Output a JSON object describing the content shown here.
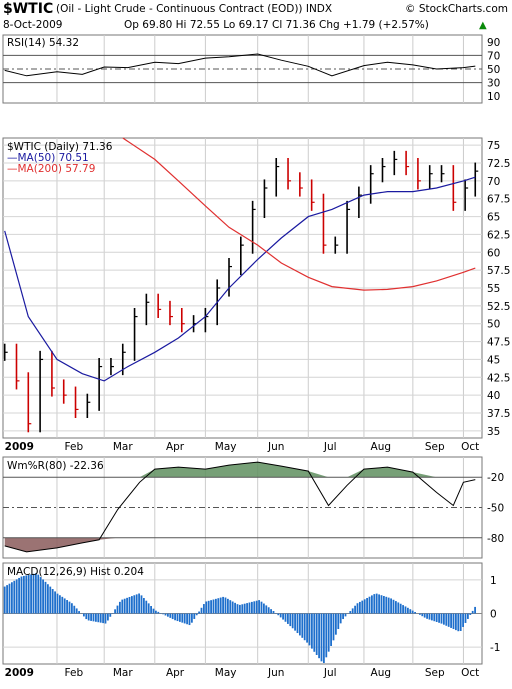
{
  "header": {
    "symbol": "$WTIC",
    "description": "(Oil - Light Crude - Continuous Contract (EOD)) INDX",
    "source": "© StockCharts.com",
    "date": "8-Oct-2009",
    "quote": "Op 69.80  Hi 72.55  Lo 69.17  Cl 71.36  Chg +1.79 (+2.57%)",
    "chg_arrow": "▲"
  },
  "colors": {
    "price_up": "#000000",
    "price_down": "#cc0000",
    "ma50": "#1a1aa0",
    "ma200": "#e03030",
    "wm_green": "#5f8f5f",
    "wm_brown": "#8a5a5a",
    "macd_hist": "#1e6fcc"
  },
  "chart_data": [
    {
      "type": "line",
      "name": "rsi",
      "title": "RSI(14) 54.32",
      "ylim": [
        0,
        100
      ],
      "yticks": [
        10,
        30,
        50,
        70,
        90
      ],
      "reference_lines": [
        30,
        50,
        70
      ],
      "x": [
        "2009-01-02",
        "2009-01-15",
        "2009-02-02",
        "2009-02-17",
        "2009-03-02",
        "2009-03-16",
        "2009-04-01",
        "2009-04-15",
        "2009-05-01",
        "2009-05-15",
        "2009-06-01",
        "2009-06-15",
        "2009-07-01",
        "2009-07-15",
        "2009-08-03",
        "2009-08-17",
        "2009-09-01",
        "2009-09-15",
        "2009-10-01",
        "2009-10-08"
      ],
      "values": [
        48,
        40,
        46,
        42,
        53,
        52,
        60,
        58,
        66,
        68,
        72,
        63,
        54,
        40,
        55,
        60,
        56,
        50,
        52,
        54.32
      ]
    },
    {
      "type": "line",
      "name": "price",
      "title": "$WTIC (Daily) 71.36",
      "ylim": [
        34,
        76
      ],
      "yticks": [
        35,
        37.5,
        40,
        42.5,
        45,
        47.5,
        50,
        52.5,
        55,
        57.5,
        60,
        62.5,
        65,
        67.5,
        70,
        72.5,
        75
      ],
      "series": [
        {
          "name": "$WTIC (Daily) 71.36",
          "x": [
            "2009-01-02",
            "2009-01-09",
            "2009-01-16",
            "2009-01-23",
            "2009-01-30",
            "2009-02-06",
            "2009-02-13",
            "2009-02-20",
            "2009-02-27",
            "2009-03-06",
            "2009-03-13",
            "2009-03-20",
            "2009-03-27",
            "2009-04-03",
            "2009-04-10",
            "2009-04-17",
            "2009-04-24",
            "2009-05-01",
            "2009-05-08",
            "2009-05-15",
            "2009-05-22",
            "2009-05-29",
            "2009-06-05",
            "2009-06-12",
            "2009-06-19",
            "2009-06-26",
            "2009-07-03",
            "2009-07-10",
            "2009-07-17",
            "2009-07-24",
            "2009-07-31",
            "2009-08-07",
            "2009-08-14",
            "2009-08-21",
            "2009-08-28",
            "2009-09-04",
            "2009-09-11",
            "2009-09-18",
            "2009-09-25",
            "2009-10-02",
            "2009-10-08"
          ],
          "values": [
            46,
            42,
            36,
            45,
            41,
            40,
            38,
            39,
            44,
            44,
            46,
            51,
            53,
            52,
            51,
            50,
            50,
            51,
            55,
            58,
            61,
            66,
            69,
            72,
            70,
            69,
            67,
            61,
            61,
            66,
            68,
            71,
            72,
            73,
            72,
            70,
            71,
            71,
            67,
            69,
            71.36
          ]
        },
        {
          "name": "MA(50) 70.51",
          "x": [
            "2009-01-02",
            "2009-01-16",
            "2009-02-02",
            "2009-02-17",
            "2009-03-02",
            "2009-03-16",
            "2009-04-01",
            "2009-04-15",
            "2009-05-01",
            "2009-05-15",
            "2009-06-01",
            "2009-06-15",
            "2009-07-01",
            "2009-07-15",
            "2009-08-03",
            "2009-08-17",
            "2009-09-01",
            "2009-09-15",
            "2009-10-01",
            "2009-10-08"
          ],
          "values": [
            63,
            51,
            45,
            43,
            42,
            44,
            46,
            48,
            51,
            55,
            59,
            62,
            65,
            66,
            68,
            68.5,
            68.5,
            69,
            70,
            70.51
          ]
        },
        {
          "name": "MA(200) 57.79",
          "x": [
            "2009-03-13",
            "2009-04-01",
            "2009-04-15",
            "2009-05-01",
            "2009-05-15",
            "2009-06-01",
            "2009-06-15",
            "2009-07-01",
            "2009-07-15",
            "2009-08-03",
            "2009-08-17",
            "2009-09-01",
            "2009-09-15",
            "2009-10-01",
            "2009-10-08"
          ],
          "values": [
            76,
            73,
            70,
            66.5,
            63.5,
            61,
            58.5,
            56.5,
            55.2,
            54.7,
            54.8,
            55.2,
            56,
            57.2,
            57.79
          ]
        }
      ]
    },
    {
      "type": "line",
      "name": "williams",
      "title": "Wm%R(80) -22.36",
      "ylim": [
        -100,
        0
      ],
      "yticks": [
        -20,
        -50,
        -80
      ],
      "reference_lines": [
        -20,
        -50,
        -80
      ],
      "x": [
        "2009-01-02",
        "2009-01-15",
        "2009-02-02",
        "2009-02-17",
        "2009-02-27",
        "2009-03-10",
        "2009-03-23",
        "2009-04-01",
        "2009-04-15",
        "2009-05-01",
        "2009-05-15",
        "2009-06-01",
        "2009-06-15",
        "2009-07-01",
        "2009-07-13",
        "2009-07-24",
        "2009-08-03",
        "2009-08-17",
        "2009-09-01",
        "2009-09-15",
        "2009-09-25",
        "2009-10-01",
        "2009-10-08"
      ],
      "values": [
        -88,
        -94,
        -90,
        -85,
        -82,
        -52,
        -25,
        -12,
        -10,
        -12,
        -8,
        -5,
        -9,
        -14,
        -48,
        -28,
        -12,
        -10,
        -15,
        -35,
        -48,
        -25,
        -22.36
      ]
    },
    {
      "type": "bar",
      "name": "macd",
      "title": "MACD(12,26,9) Hist 0.204",
      "ylim": [
        -1.5,
        1.5
      ],
      "yticks": [
        1,
        0,
        -1
      ],
      "x": [
        "2009-01-02",
        "2009-01-12",
        "2009-01-21",
        "2009-02-02",
        "2009-02-11",
        "2009-02-20",
        "2009-03-03",
        "2009-03-12",
        "2009-03-23",
        "2009-04-01",
        "2009-04-13",
        "2009-04-22",
        "2009-05-01",
        "2009-05-12",
        "2009-05-21",
        "2009-06-02",
        "2009-06-11",
        "2009-06-22",
        "2009-07-01",
        "2009-07-10",
        "2009-07-21",
        "2009-07-30",
        "2009-08-10",
        "2009-08-19",
        "2009-08-28",
        "2009-09-09",
        "2009-09-18",
        "2009-09-29",
        "2009-10-08"
      ],
      "values": [
        0.8,
        1.1,
        1.2,
        0.6,
        0.3,
        -0.2,
        -0.3,
        0.4,
        0.6,
        0.1,
        -0.2,
        -0.35,
        0.35,
        0.5,
        0.25,
        0.4,
        0.05,
        -0.45,
        -0.9,
        -1.5,
        -0.2,
        0.3,
        0.6,
        0.45,
        0.2,
        -0.15,
        -0.3,
        -0.55,
        0.204
      ]
    }
  ],
  "months": [
    "2009",
    "Feb",
    "Mar",
    "Apr",
    "May",
    "Jun",
    "Jul",
    "Aug",
    "Sep",
    "Oct"
  ]
}
